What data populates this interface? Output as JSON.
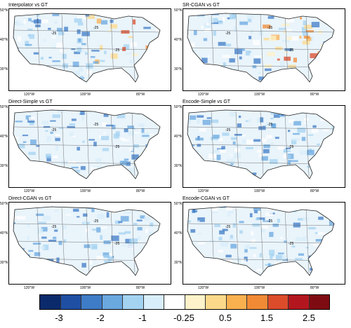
{
  "panels": [
    {
      "title": "Interpolator vs GT"
    },
    {
      "title": "SR-CGAN vs GT"
    },
    {
      "title": "Direct-Simple vs GT"
    },
    {
      "title": "Encode-Simple vs GT"
    },
    {
      "title": "Direct-CGAN vs GT"
    },
    {
      "title": "Encode-CGAN vs GT"
    }
  ],
  "lat_labels": [
    "50°N",
    "40°N",
    "30°N"
  ],
  "lon_labels": [
    "120°W",
    "100°W",
    "80°W"
  ],
  "contour_label": "-25",
  "colorbar": {
    "colors": [
      "#0b2a6b",
      "#1f4fa3",
      "#3f7cc7",
      "#6aa8e0",
      "#a4d3f2",
      "#d8eefa",
      "#ffffff",
      "#fdf2c9",
      "#fcd98a",
      "#f9b04f",
      "#f08a35",
      "#dc4c2a",
      "#b3161e",
      "#7f0b12"
    ],
    "labels": [
      "-3",
      "-2",
      "-1",
      "-0.25",
      "0.5",
      "1.5",
      "2.5"
    ]
  }
}
